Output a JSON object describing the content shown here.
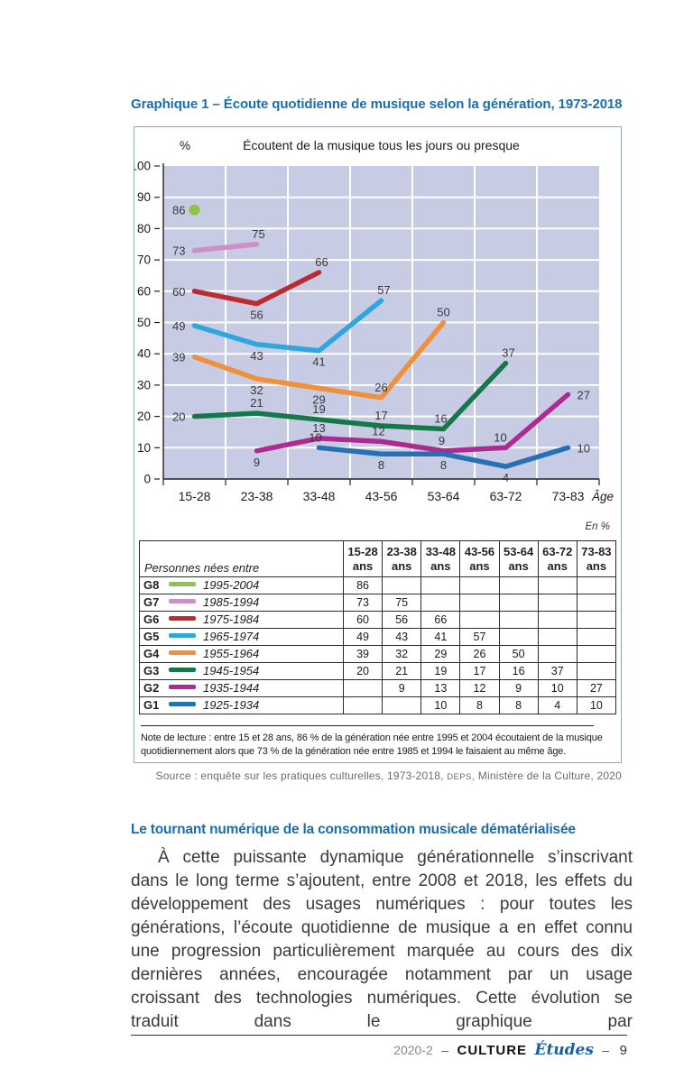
{
  "page": {
    "figure_title": "Graphique 1 – Écoute quotidienne de musique selon la génération, 1973-2018",
    "note": "Note de lecture : entre 15 et 28 ans, 86 % de la génération née entre 1995 et 2004 écoutaient de la musique quotidiennement alors que 73 % de la génération née entre 1985 et 1994 le faisaient au même âge.",
    "source": {
      "prefix": "Source : enquête sur les pratiques culturelles, 1973-2018, ",
      "org": "DEPS",
      "suffix": ", Ministère de la Culture, 2020"
    },
    "section_heading": "Le tournant numérique de la consommation musicale dématérialisée",
    "body_paragraph": "À cette puissante dynamique générationnelle s’inscrivant dans le long terme s’ajoutent, entre 2008 et 2018, les effets du développement des usages numériques : pour toutes les générations, l’écoute quotidienne de musique a en effet connu une progression particulièrement marquée au cours des dix dernières années, encouragée notamment par un usage croissant des technologies numériques. Cette évolution se traduit dans le graphique par",
    "footer": {
      "issue": "2020-2",
      "dash1": "–",
      "brand1": "CULTURE",
      "brand2": "Études",
      "dash2": "–",
      "page_number": "9"
    }
  },
  "chart_data": {
    "type": "line",
    "title": "Écoutent de la musique tous les jours ou presque",
    "y_axis_label": "%",
    "x_axis_label": "Âge",
    "ylim": [
      0,
      100
    ],
    "y_tick_step": 10,
    "grid": true,
    "plot_background": "#C7CBE3",
    "categories": [
      "15-28",
      "23-38",
      "33-48",
      "43-56",
      "53-64",
      "63-72",
      "73-83"
    ],
    "series": [
      {
        "name": "G8",
        "period": "1995-2004",
        "color": "#8CC449",
        "start_index": 0,
        "values": [
          86
        ]
      },
      {
        "name": "G7",
        "period": "1985-1994",
        "color": "#CD8FC5",
        "start_index": 0,
        "values": [
          73,
          75
        ]
      },
      {
        "name": "G6",
        "period": "1975-1984",
        "color": "#BC2B31",
        "start_index": 0,
        "values": [
          60,
          56,
          66
        ]
      },
      {
        "name": "G5",
        "period": "1965-1974",
        "color": "#2EA7DF",
        "start_index": 0,
        "values": [
          49,
          43,
          41,
          57
        ]
      },
      {
        "name": "G4",
        "period": "1955-1964",
        "color": "#F0903B",
        "start_index": 0,
        "values": [
          39,
          32,
          29,
          26,
          50
        ]
      },
      {
        "name": "G3",
        "period": "1945-1954",
        "color": "#15784B",
        "start_index": 0,
        "values": [
          20,
          21,
          19,
          17,
          16,
          37
        ]
      },
      {
        "name": "G2",
        "period": "1935-1944",
        "color": "#AD2B90",
        "start_index": 1,
        "values": [
          9,
          13,
          12,
          9,
          10,
          27
        ]
      },
      {
        "name": "G1",
        "period": "1925-1934",
        "color": "#2571B4",
        "start_index": 2,
        "values": [
          10,
          8,
          8,
          4,
          10
        ]
      }
    ]
  },
  "table": {
    "unit_label": "En %",
    "row_header": "Personnes nées entre",
    "col_unit": "ans"
  }
}
